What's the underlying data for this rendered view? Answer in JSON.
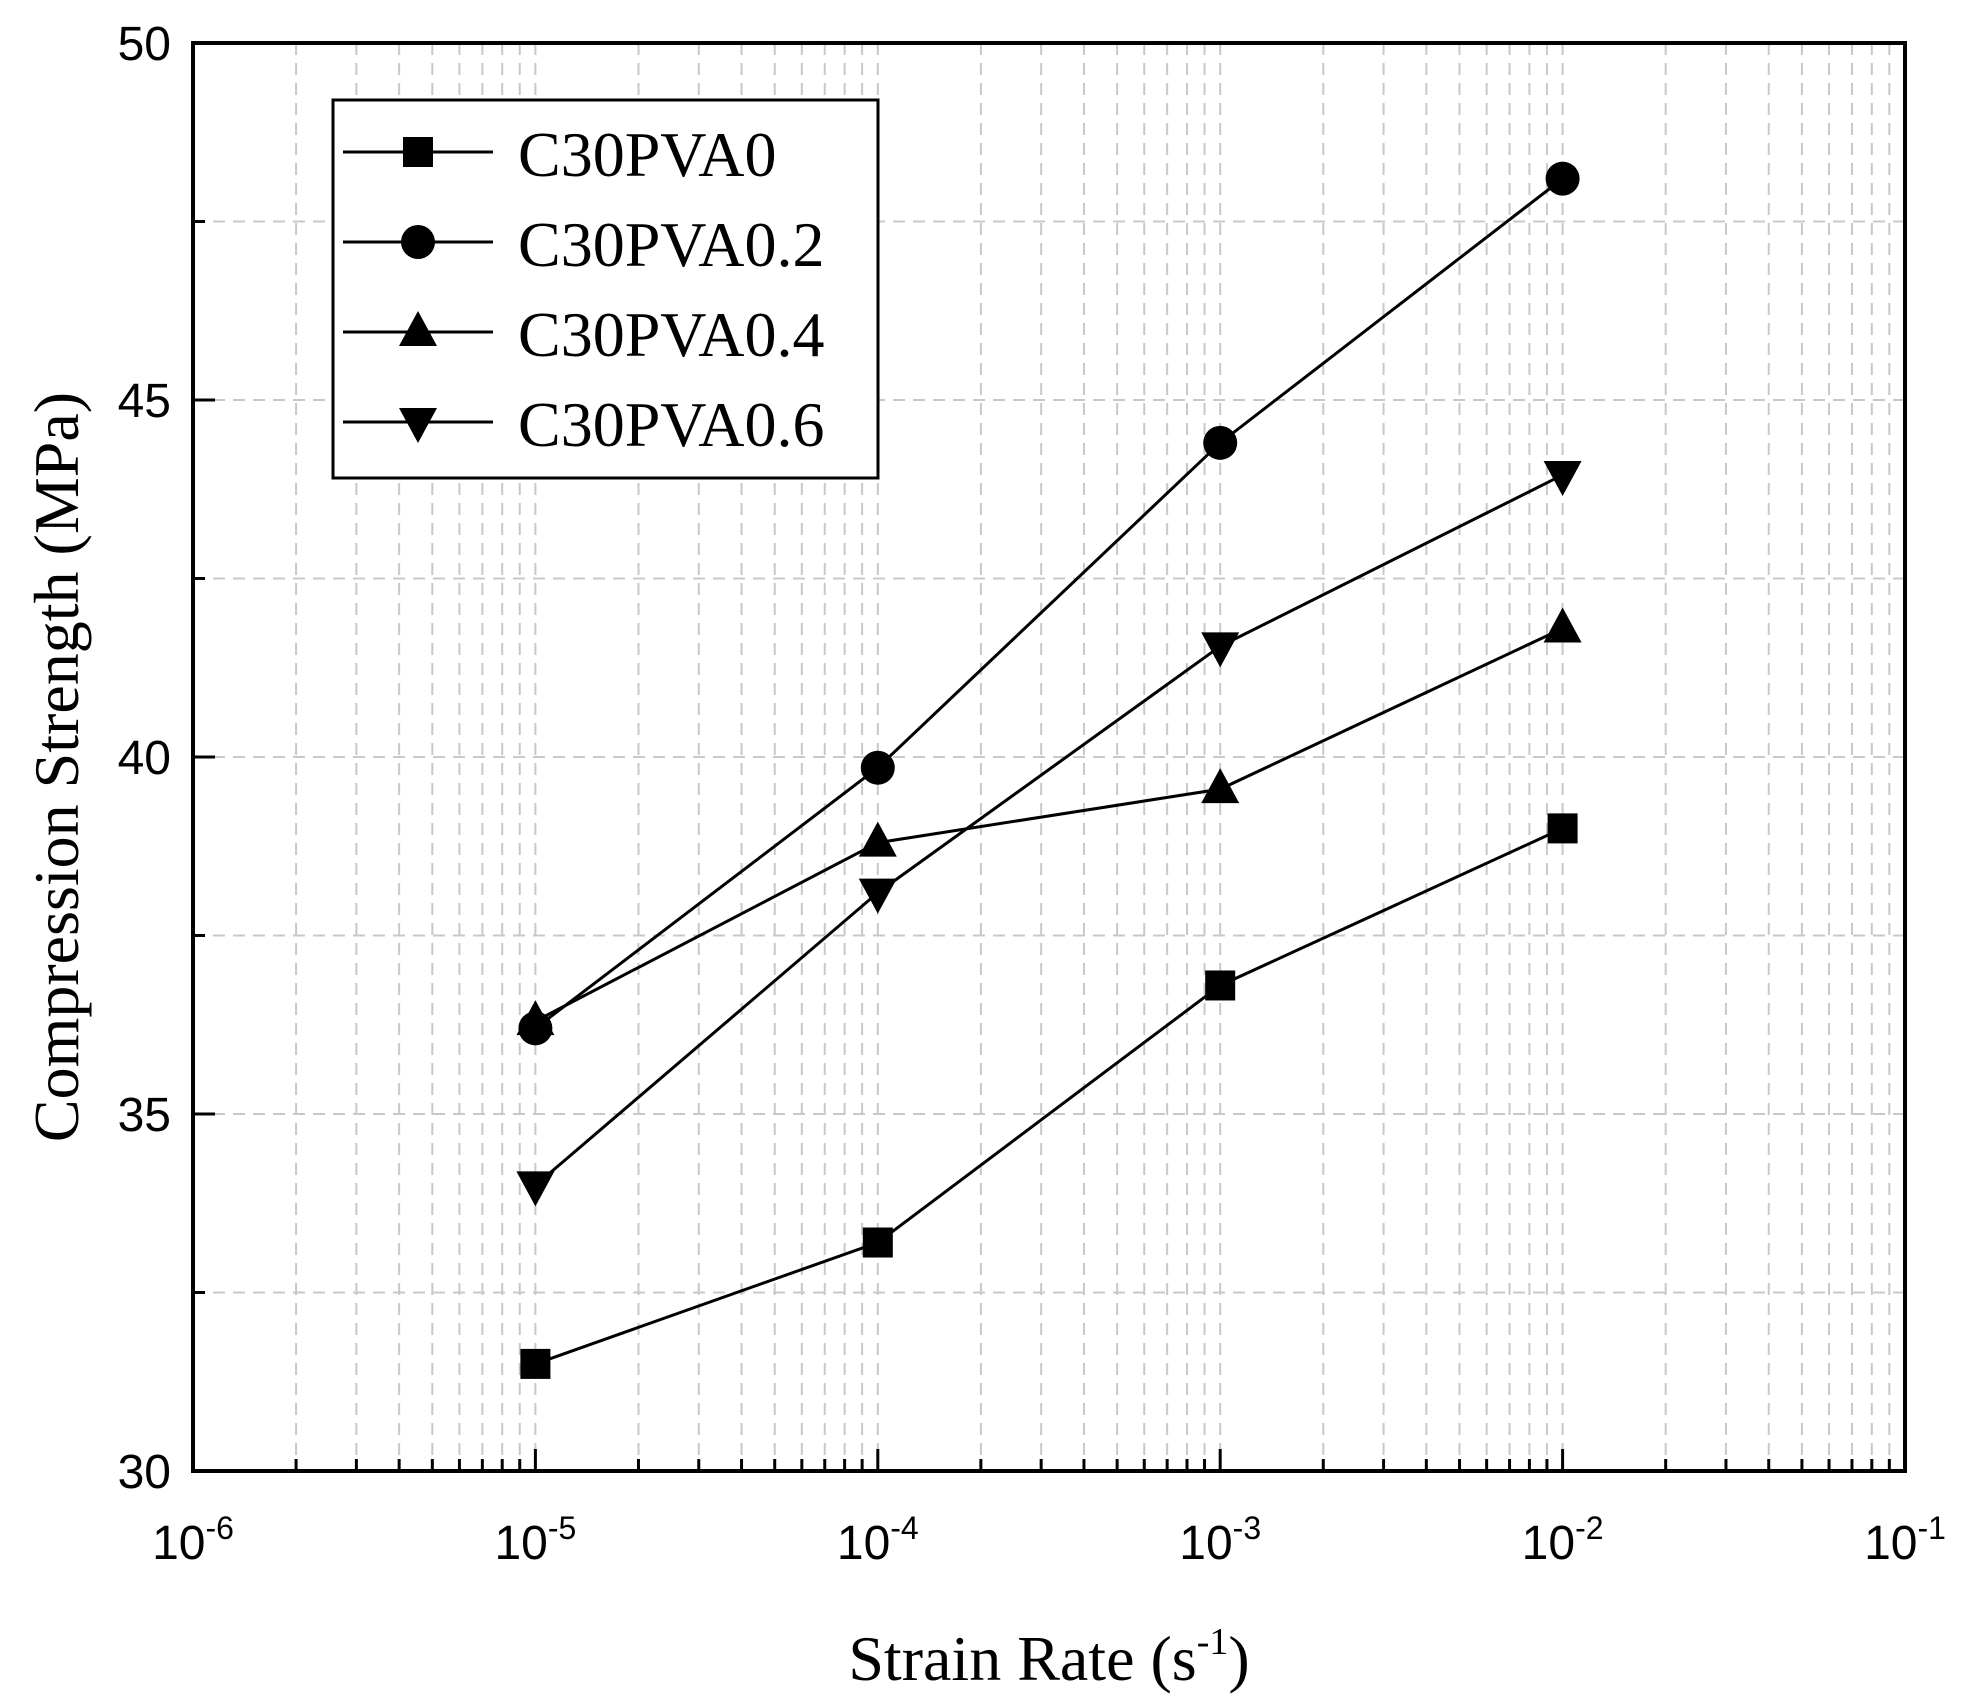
{
  "chart_data": {
    "type": "line",
    "xscale": "log",
    "x": [
      1e-05,
      0.0001,
      0.001,
      0.01
    ],
    "xlim": [
      1e-06,
      0.1
    ],
    "ylim": [
      30,
      50
    ],
    "x_ticks": [
      {
        "value": 1e-06,
        "base": "10",
        "exp": "-6"
      },
      {
        "value": 1e-05,
        "base": "10",
        "exp": "-5"
      },
      {
        "value": 0.0001,
        "base": "10",
        "exp": "-4"
      },
      {
        "value": 0.001,
        "base": "10",
        "exp": "-3"
      },
      {
        "value": 0.01,
        "base": "10",
        "exp": "-2"
      },
      {
        "value": 0.1,
        "base": "10",
        "exp": "-1"
      }
    ],
    "y_ticks": [
      "30",
      "35",
      "40",
      "45",
      "50"
    ],
    "xlabel": {
      "main": "Strain Rate (s",
      "exp": "-1",
      "close": ")"
    },
    "ylabel": "Compression Strength (MPa)",
    "grid": true,
    "legend_position": "top-left",
    "series": [
      {
        "name": "C30PVA0",
        "marker": "square",
        "values": [
          31.5,
          33.2,
          36.8,
          39.0
        ]
      },
      {
        "name": "C30PVA0.2",
        "marker": "circle",
        "values": [
          36.2,
          39.85,
          44.4,
          48.1
        ]
      },
      {
        "name": "C30PVA0.4",
        "marker": "triangle-up",
        "values": [
          36.3,
          38.8,
          39.55,
          41.8
        ]
      },
      {
        "name": "C30PVA0.6",
        "marker": "triangle-down",
        "values": [
          34.0,
          38.1,
          41.55,
          43.95
        ]
      }
    ],
    "colors": {
      "line": "#000000",
      "grid": "#c8c8c8",
      "background": "#ffffff"
    }
  }
}
